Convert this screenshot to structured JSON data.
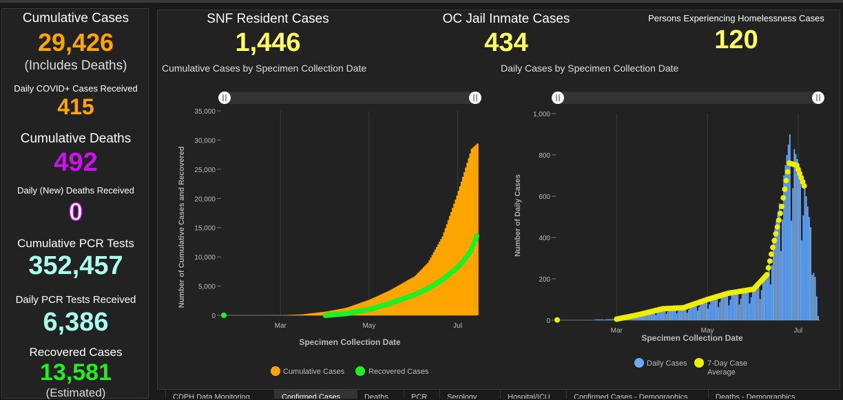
{
  "left": {
    "cumulative_cases_label": "Cumulative Cases",
    "cumulative_cases_value": "29,426",
    "includes_deaths": "(Includes Deaths)",
    "daily_cases_label": "Daily COVID+ Cases Received",
    "daily_cases_value": "415",
    "cumulative_deaths_label": "Cumulative Deaths",
    "cumulative_deaths_value": "492",
    "daily_deaths_label": "Daily (New) Deaths Received",
    "daily_deaths_value": "0",
    "cumulative_pcr_label": "Cumulative PCR Tests",
    "cumulative_pcr_value": "352,457",
    "daily_pcr_label": "Daily PCR Tests Received",
    "daily_pcr_value": "6,386",
    "recovered_label": "Recovered Cases",
    "recovered_value": "13,581",
    "estimated": "(Estimated)"
  },
  "header": {
    "snf_label": "SNF Resident Cases",
    "snf_value": "1,446",
    "jail_label": "OC Jail Inmate Cases",
    "jail_value": "434",
    "homeless_label": "Persons Experiencing Homelessness Cases",
    "homeless_value": "120"
  },
  "colors": {
    "orange": "#ffa500",
    "green": "#22ee22",
    "purple": "#cc11ee",
    "cyan": "#aaffee",
    "yellow": "#ffff66",
    "blue": "#6aaaf8",
    "dot_yellow": "#eeee00"
  },
  "tabs": [
    "CDPH Data Monitoring",
    "Confirmed Cases",
    "Deaths",
    "PCR",
    "Serology",
    "Hospital/ICU",
    "Confirmed Cases - Demographics",
    "Deaths - Demographics"
  ],
  "chart_data": [
    {
      "type": "area",
      "title": "Cumulative Cases by Specimen Collection Date",
      "xlabel": "Specimen Collection Date",
      "ylabel": "Number of Cumulative Cases and Recovered",
      "ylim": [
        0,
        35000
      ],
      "yticks": [
        "0",
        "5,000",
        "10,000",
        "15,000",
        "20,000",
        "25,000",
        "30,000",
        "35,000"
      ],
      "xticks": [
        "Mar",
        "May",
        "Jul"
      ],
      "x": [
        "Jan 22",
        "Feb 15",
        "Mar 1",
        "Mar 15",
        "Apr 1",
        "Apr 15",
        "May 1",
        "May 15",
        "Jun 1",
        "Jun 10",
        "Jun 20",
        "Jun 30",
        "Jul 5",
        "Jul 10",
        "Jul 14"
      ],
      "series": [
        {
          "name": "Cumulative Cases",
          "values": [
            1,
            5,
            20,
            150,
            650,
            1300,
            2700,
            4300,
            6700,
            9000,
            13500,
            20500,
            24500,
            28500,
            29400
          ]
        },
        {
          "name": "Recovered Cases",
          "values": [
            1,
            null,
            null,
            null,
            0,
            300,
            1000,
            2000,
            3500,
            4500,
            6000,
            8000,
            9300,
            11000,
            13581
          ]
        }
      ],
      "legend": [
        "Cumulative Cases",
        "Recovered Cases"
      ],
      "grid": false
    },
    {
      "type": "bar",
      "title": "Daily Cases by Specimen Collection Date",
      "xlabel": "Specimen Collection Date",
      "ylabel": "Number of Daily Cases",
      "ylim": [
        0,
        1000
      ],
      "yticks": [
        "0",
        "200",
        "400",
        "600",
        "800",
        "1,000"
      ],
      "xticks": [
        "Mar",
        "May",
        "Jul"
      ],
      "x": [
        "Jan 22",
        "Mar 1",
        "Mar 15",
        "Apr 1",
        "Apr 15",
        "May 1",
        "May 15",
        "Jun 1",
        "Jun 10",
        "Jun 20",
        "Jun 25",
        "Jun 30",
        "Jul 5",
        "Jul 10",
        "Jul 14"
      ],
      "series": [
        {
          "name": "Daily Cases",
          "values": [
            1,
            5,
            30,
            55,
            60,
            100,
            130,
            150,
            230,
            650,
            900,
            780,
            650,
            400,
            20
          ]
        },
        {
          "name": "7-Day Case Average",
          "values": [
            1,
            5,
            25,
            55,
            60,
            100,
            130,
            150,
            220,
            550,
            760,
            750,
            650,
            null,
            null
          ]
        }
      ],
      "legend": [
        "Daily Cases",
        "7-Day Case Average"
      ],
      "grid": false
    }
  ]
}
